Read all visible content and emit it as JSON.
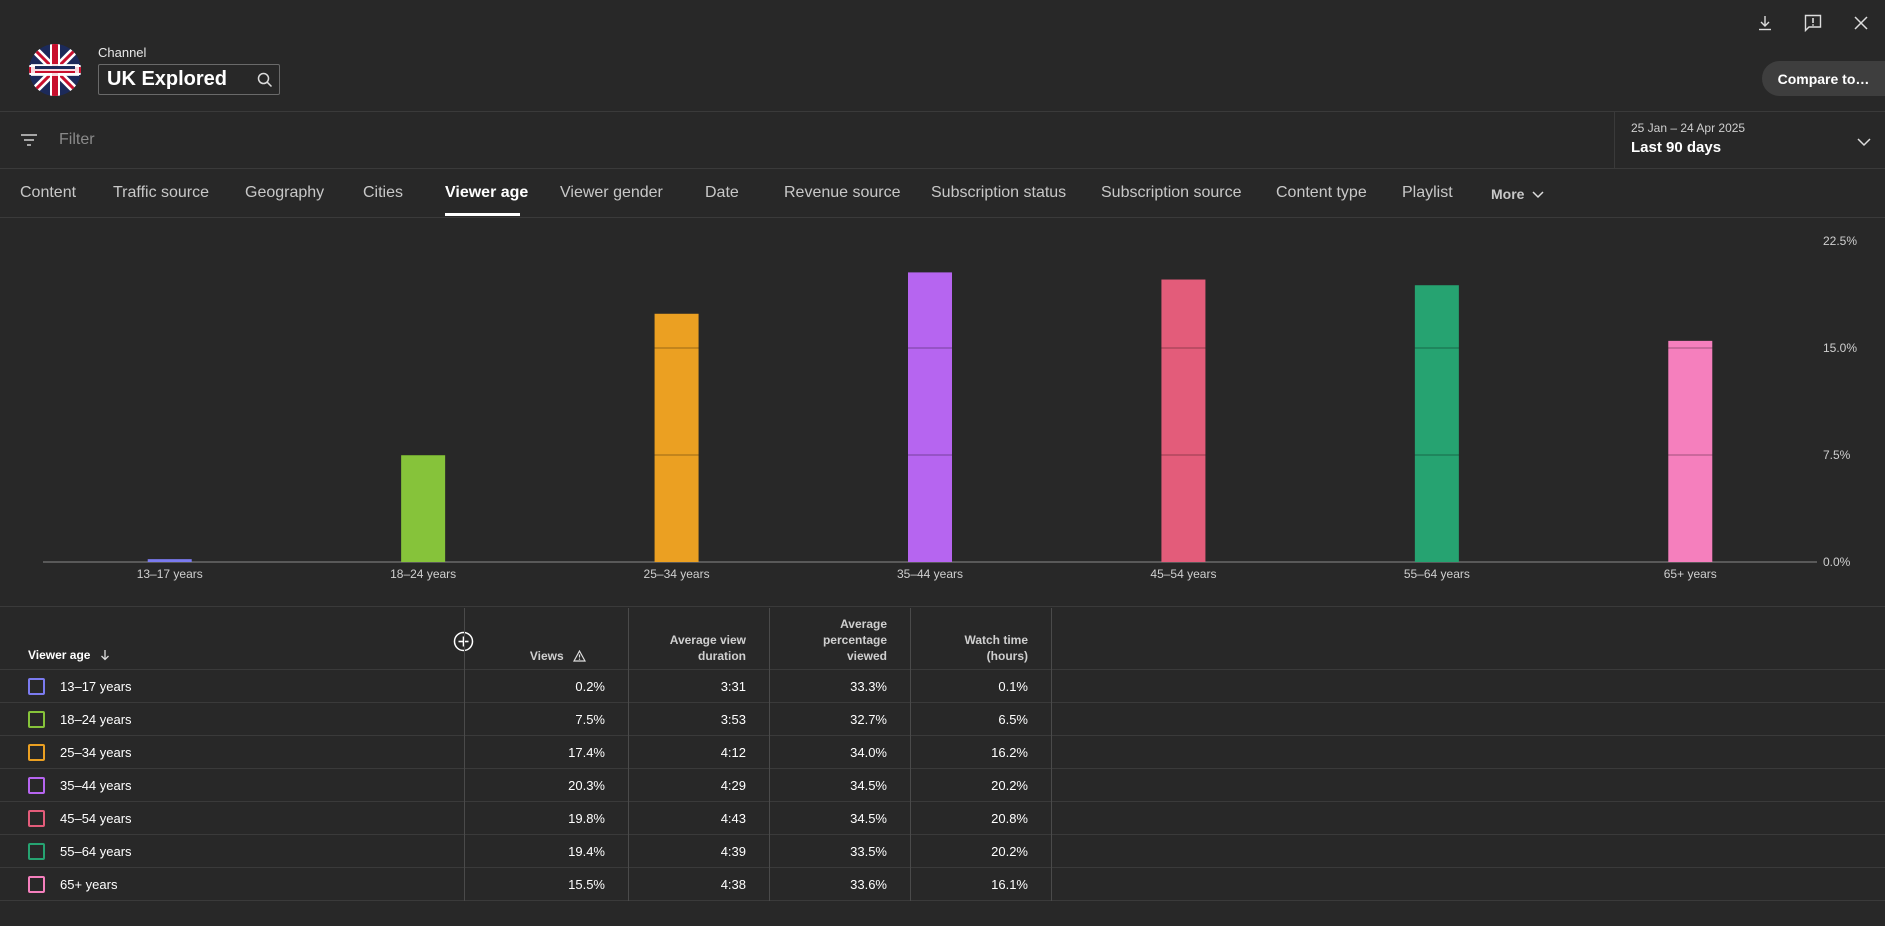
{
  "header": {
    "channel_label": "Channel",
    "channel_name": "UK Explored",
    "compare_label": "Compare to…",
    "icons": [
      "download-icon",
      "feedback-icon",
      "close-icon"
    ]
  },
  "filter": {
    "placeholder": "Filter",
    "date_range": "25 Jan – 24 Apr 2025",
    "period": "Last 90 days"
  },
  "tabs": [
    {
      "label": "Content"
    },
    {
      "label": "Traffic source"
    },
    {
      "label": "Geography"
    },
    {
      "label": "Cities"
    },
    {
      "label": "Viewer age",
      "active": true
    },
    {
      "label": "Viewer gender"
    },
    {
      "label": "Date"
    },
    {
      "label": "Revenue source"
    },
    {
      "label": "Subscription status"
    },
    {
      "label": "Subscription source"
    },
    {
      "label": "Content type"
    },
    {
      "label": "Playlist"
    },
    {
      "label": "More"
    }
  ],
  "chart_data": {
    "type": "bar",
    "categories": [
      "13–17 years",
      "18–24 years",
      "25–34 years",
      "35–44 years",
      "45–54 years",
      "55–64 years",
      "65+ years"
    ],
    "values": [
      0.2,
      7.5,
      17.4,
      20.3,
      19.8,
      19.4,
      15.5
    ],
    "colors": [
      "#7b7bf0",
      "#86c33a",
      "#eba022",
      "#b665f0",
      "#e35c7a",
      "#26a371",
      "#f57fbd"
    ],
    "ylim": [
      0,
      22.5
    ],
    "yticks": [
      "0.0%",
      "7.5%",
      "15.0%",
      "22.5%"
    ],
    "ytick_values": [
      0,
      7.5,
      15,
      22.5
    ],
    "grid": true
  },
  "table": {
    "headers": {
      "dimension": "Viewer age",
      "views": "Views",
      "avg_view_duration": [
        "Average view",
        "duration"
      ],
      "avg_pct_viewed": [
        "Average",
        "percentage",
        "viewed"
      ],
      "watch_time": [
        "Watch time",
        "(hours)"
      ]
    },
    "rows": [
      {
        "label": "13–17 years",
        "views": "0.2%",
        "duration": "3:31",
        "pct": "33.3%",
        "watch": "0.1%",
        "color": "#7b7bf0"
      },
      {
        "label": "18–24 years",
        "views": "7.5%",
        "duration": "3:53",
        "pct": "32.7%",
        "watch": "6.5%",
        "color": "#86c33a"
      },
      {
        "label": "25–34 years",
        "views": "17.4%",
        "duration": "4:12",
        "pct": "34.0%",
        "watch": "16.2%",
        "color": "#eba022"
      },
      {
        "label": "35–44 years",
        "views": "20.3%",
        "duration": "4:29",
        "pct": "34.5%",
        "watch": "20.2%",
        "color": "#b665f0"
      },
      {
        "label": "45–54 years",
        "views": "19.8%",
        "duration": "4:43",
        "pct": "34.5%",
        "watch": "20.8%",
        "color": "#e35c7a"
      },
      {
        "label": "55–64 years",
        "views": "19.4%",
        "duration": "4:39",
        "pct": "33.5%",
        "watch": "20.2%",
        "color": "#26a371"
      },
      {
        "label": "65+ years",
        "views": "15.5%",
        "duration": "4:38",
        "pct": "33.6%",
        "watch": "16.1%",
        "color": "#f57fbd"
      }
    ]
  }
}
